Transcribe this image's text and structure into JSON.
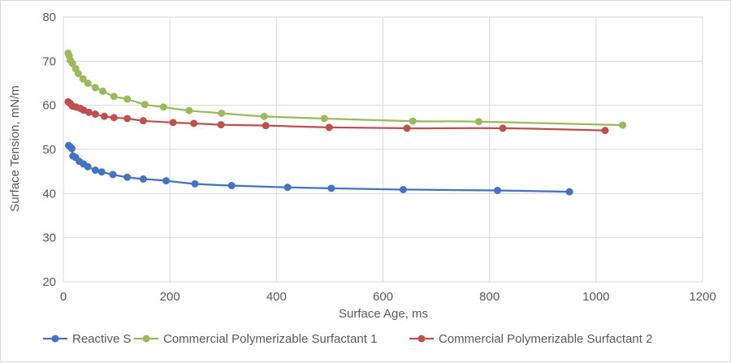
{
  "chart_data": {
    "type": "scatter",
    "title": "",
    "xlabel": "Surface Age, ms",
    "ylabel": "Surface Tension, mN/m",
    "xlim": [
      0,
      1200
    ],
    "ylim": [
      20,
      80
    ],
    "x_ticks": [
      0,
      200,
      400,
      600,
      800,
      1000,
      1200
    ],
    "y_ticks": [
      20,
      30,
      40,
      50,
      60,
      70,
      80
    ],
    "grid": true,
    "legend_position": "bottom",
    "series": [
      {
        "name": "Reactive S",
        "color": "#4472c4",
        "points": [
          [
            10,
            50.9
          ],
          [
            13,
            50.6
          ],
          [
            16,
            50.2
          ],
          [
            18,
            48.5
          ],
          [
            23,
            48.2
          ],
          [
            30,
            47.3
          ],
          [
            38,
            46.7
          ],
          [
            46,
            46.1
          ],
          [
            60,
            45.3
          ],
          [
            72,
            44.9
          ],
          [
            93,
            44.3
          ],
          [
            120,
            43.7
          ],
          [
            150,
            43.3
          ],
          [
            193,
            42.9
          ],
          [
            247,
            42.2
          ],
          [
            316,
            41.8
          ],
          [
            421,
            41.4
          ],
          [
            503,
            41.2
          ],
          [
            638,
            40.9
          ],
          [
            815,
            40.7
          ],
          [
            950,
            40.4
          ]
        ]
      },
      {
        "name": "Commercial Polymerizable Surfactant 1",
        "color": "#9bbb59",
        "points": [
          [
            9,
            71.8
          ],
          [
            11,
            71.2
          ],
          [
            13,
            70.2
          ],
          [
            17,
            69.5
          ],
          [
            23,
            68.3
          ],
          [
            28,
            67.2
          ],
          [
            37,
            66.0
          ],
          [
            46,
            65.0
          ],
          [
            60,
            64.0
          ],
          [
            74,
            63.2
          ],
          [
            95,
            62.0
          ],
          [
            120,
            61.4
          ],
          [
            153,
            60.2
          ],
          [
            188,
            59.6
          ],
          [
            236,
            58.8
          ],
          [
            297,
            58.2
          ],
          [
            377,
            57.5
          ],
          [
            490,
            57.0
          ],
          [
            656,
            56.4
          ],
          [
            780,
            56.3
          ],
          [
            1050,
            55.5
          ]
        ]
      },
      {
        "name": "Commercial Polymerizable Surfactant 2",
        "color": "#c0504d",
        "points": [
          [
            9,
            60.8
          ],
          [
            13,
            60.4
          ],
          [
            17,
            59.8
          ],
          [
            24,
            59.6
          ],
          [
            32,
            59.3
          ],
          [
            38,
            58.9
          ],
          [
            48,
            58.4
          ],
          [
            60,
            58.0
          ],
          [
            77,
            57.5
          ],
          [
            95,
            57.2
          ],
          [
            120,
            57.0
          ],
          [
            150,
            56.5
          ],
          [
            206,
            56.1
          ],
          [
            245,
            55.9
          ],
          [
            296,
            55.6
          ],
          [
            380,
            55.4
          ],
          [
            499,
            55.0
          ],
          [
            645,
            54.8
          ],
          [
            825,
            54.8
          ],
          [
            1017,
            54.3
          ]
        ]
      }
    ]
  }
}
